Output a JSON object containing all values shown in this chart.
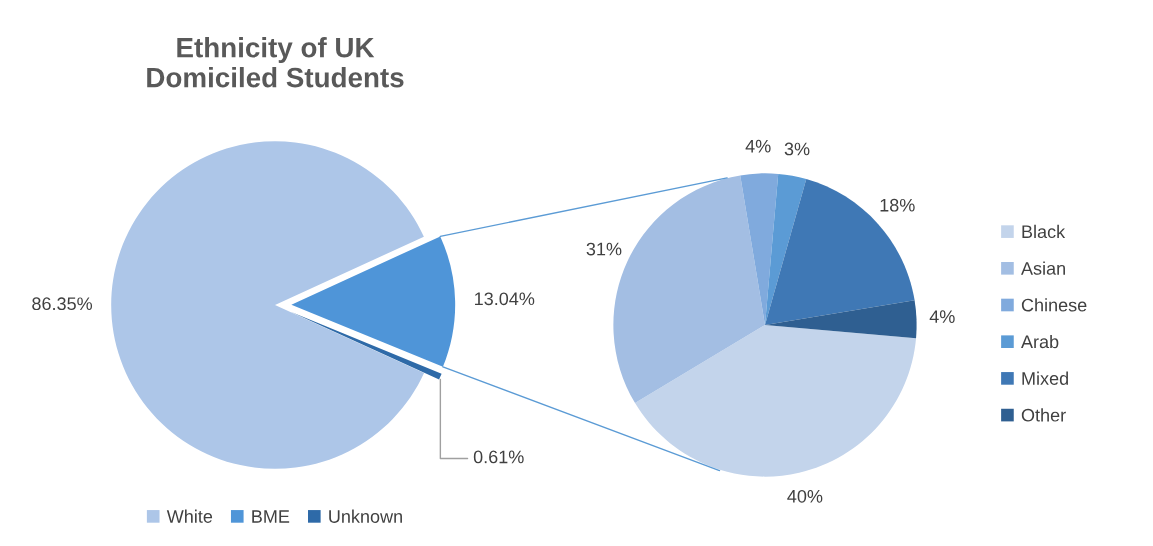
{
  "chart_data": [
    {
      "type": "pie",
      "title": "Ethnicity of UK\nDomiciled Students",
      "categories": [
        "White",
        "BME",
        "Unknown"
      ],
      "values": [
        86.35,
        13.04,
        0.61
      ],
      "colors": [
        "#adc6e8",
        "#4f95d8",
        "#2e6aa8"
      ],
      "value_labels": [
        "86.35%",
        "13.04%",
        "0.61%"
      ],
      "legend": "bottom"
    },
    {
      "type": "pie",
      "categories": [
        "Black",
        "Asian",
        "Chinese",
        "Arab",
        "Mixed",
        "Other"
      ],
      "values": [
        40,
        31,
        4,
        3,
        18,
        4
      ],
      "colors": [
        "#c3d4eb",
        "#a3bee3",
        "#80aadd",
        "#5b9bd5",
        "#3f78b5",
        "#2f5f91"
      ],
      "value_labels": [
        "40%",
        "31%",
        "4%",
        "3%",
        "18%",
        "4%"
      ],
      "legend": "right"
    }
  ]
}
